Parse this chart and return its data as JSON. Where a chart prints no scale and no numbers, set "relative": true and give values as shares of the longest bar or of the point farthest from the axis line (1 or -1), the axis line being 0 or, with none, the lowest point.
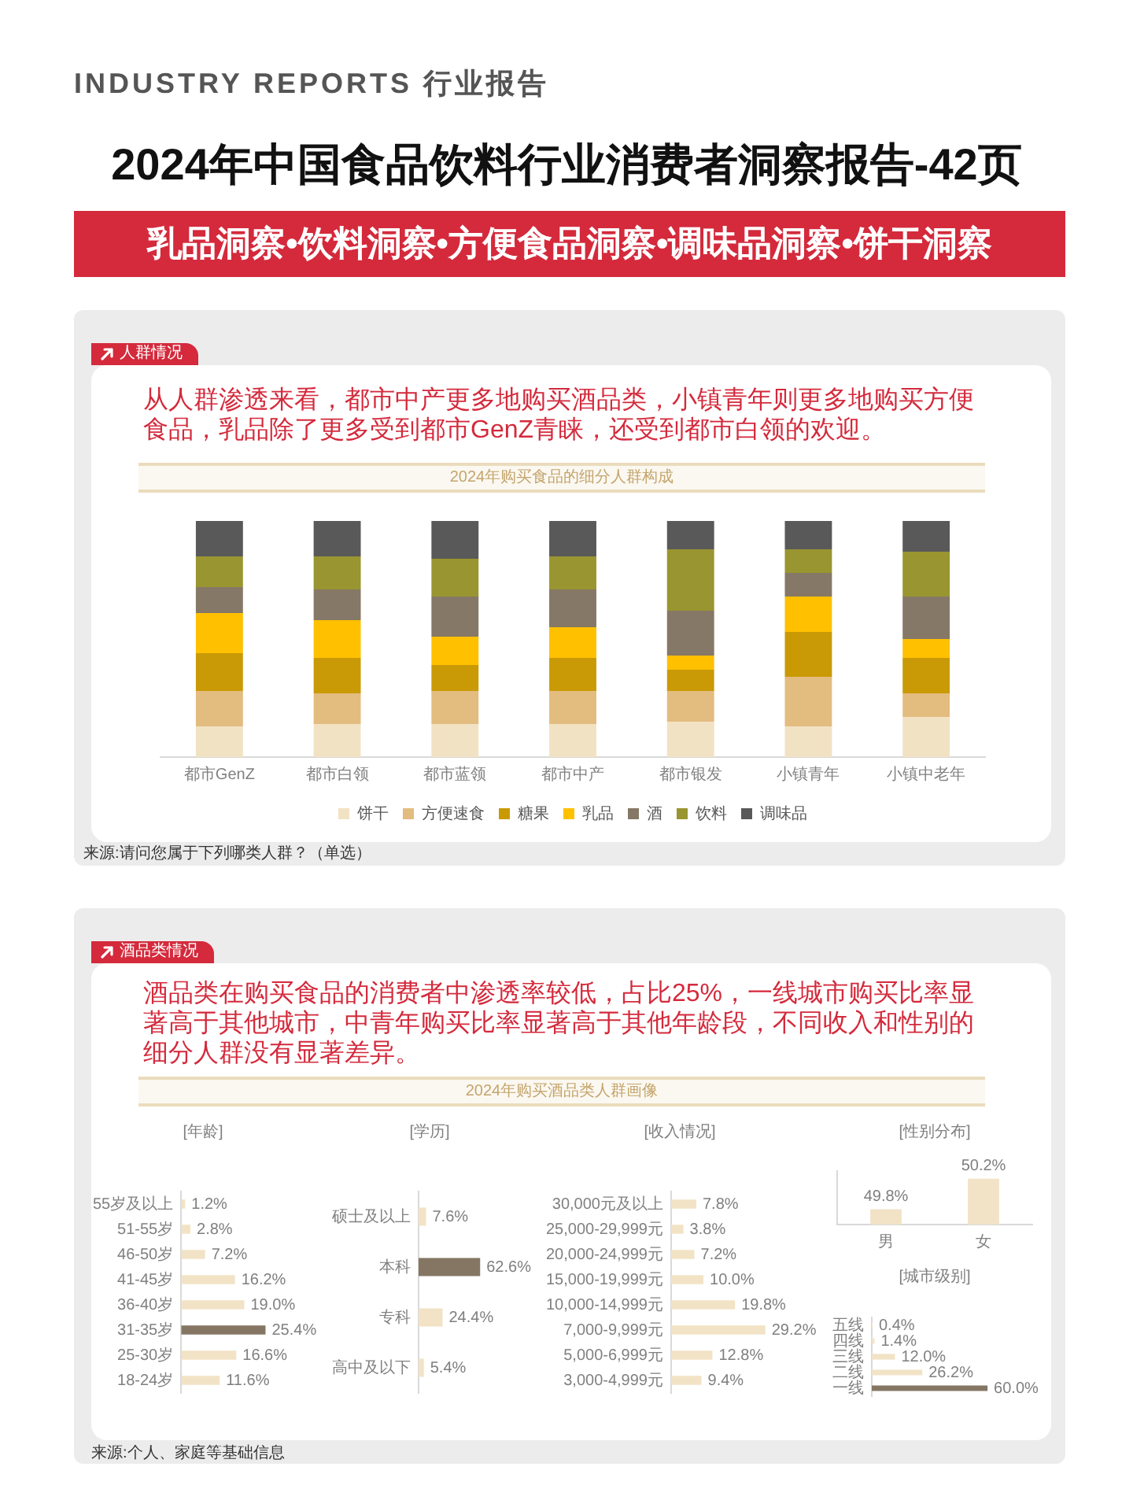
{
  "chart_data": [
    {
      "type": "other",
      "title": "2024年中国食品饮料行业消费者洞察报告-42页",
      "subtitle": "乳品洞察•饮料洞察•方便食品洞察•调味品洞察•饼干洞察",
      "annotations": [
        "INDUSTRY REPORTS 行业报告"
      ]
    },
    {
      "type": "bar",
      "stacked": true,
      "relative": true,
      "title": "2024年购买食品的细分人群构成",
      "subtitle": "从人群渗透来看，都市中产更多地购买酒品类，小镇青年则更多地购买方便食品，乳品除了更多受到都市GenZ青睐，还受到都市白领的欢迎。",
      "annotations": [
        "人群情况",
        "来源:请问您属于下列哪类人群？（单选）"
      ],
      "categories": [
        "都市GenZ",
        "都市白领",
        "都市蓝领",
        "都市中产",
        "都市银发",
        "小镇青年",
        "小镇中老年"
      ],
      "series": [
        {
          "name": "饼干",
          "color": "#f2e2c4",
          "values": [
            0.13,
            0.14,
            0.14,
            0.14,
            0.15,
            0.13,
            0.17
          ]
        },
        {
          "name": "方便速食",
          "color": "#e3bc80",
          "values": [
            0.15,
            0.13,
            0.14,
            0.14,
            0.13,
            0.21,
            0.1
          ]
        },
        {
          "name": "糖果",
          "color": "#c99a06",
          "values": [
            0.16,
            0.15,
            0.11,
            0.14,
            0.09,
            0.19,
            0.15
          ]
        },
        {
          "name": "乳品",
          "color": "#ffc000",
          "values": [
            0.17,
            0.16,
            0.12,
            0.13,
            0.06,
            0.15,
            0.08
          ]
        },
        {
          "name": "酒",
          "color": "#857866",
          "values": [
            0.11,
            0.13,
            0.17,
            0.16,
            0.19,
            0.1,
            0.18
          ]
        },
        {
          "name": "饮料",
          "color": "#999530",
          "values": [
            0.13,
            0.14,
            0.16,
            0.14,
            0.26,
            0.1,
            0.19
          ]
        },
        {
          "name": "调味品",
          "color": "#595959",
          "values": [
            0.15,
            0.15,
            0.16,
            0.15,
            0.12,
            0.12,
            0.13
          ]
        }
      ],
      "legend": "bottom"
    },
    {
      "type": "other",
      "title": "2024年购买酒品类人群画像",
      "subtitle": "酒品类在购买食品的消费者中渗透率较低，占比25%，一线城市购买比率显著高于其他城市，中青年购买比率显著高于其他年龄段，不同收入和性别的细分人群没有显著差异。",
      "annotations": [
        "酒品类情况"
      ]
    },
    {
      "type": "bar",
      "orientation": "horizontal",
      "title": "[年龄]",
      "categories": [
        "55岁及以上",
        "51-55岁",
        "46-50岁",
        "41-45岁",
        "36-40岁",
        "31-35岁",
        "25-30岁",
        "18-24岁"
      ],
      "values": [
        1.2,
        2.8,
        7.2,
        16.2,
        19.0,
        25.4,
        16.6,
        11.6
      ],
      "colors": [
        "#f2e3c6",
        "#f2e3c6",
        "#f2e3c6",
        "#f2e3c6",
        "#f2e3c6",
        "#857664",
        "#f2e3c6",
        "#f2e3c6"
      ],
      "value_labels": [
        "1.2%",
        "2.8%",
        "7.2%",
        "16.2%",
        "19.0%",
        "25.4%",
        "16.6%",
        "11.6%"
      ],
      "xlim": [
        0,
        26
      ],
      "tick_labels": "y",
      "annotations": [
        "来源:个人、家庭等基础信息"
      ]
    },
    {
      "type": "bar",
      "orientation": "horizontal",
      "title": "[学历]",
      "categories": [
        "硕士及以上",
        "本科",
        "专科",
        "高中及以下"
      ],
      "values": [
        7.6,
        62.6,
        24.4,
        5.4
      ],
      "colors": [
        "#f2e3c6",
        "#857664",
        "#f2e3c6",
        "#f2e3c6"
      ],
      "value_labels": [
        "7.6%",
        "62.6%",
        "24.4%",
        "5.4%"
      ],
      "xlim": [
        0,
        64
      ],
      "tick_labels": "y"
    },
    {
      "type": "bar",
      "orientation": "horizontal",
      "title": "[收入情况]",
      "categories": [
        "30,000元及以上",
        "25,000-29,999元",
        "20,000-24,999元",
        "15,000-19,999元",
        "10,000-14,999元",
        "7,000-9,999元",
        "5,000-6,999元",
        "3,000-4,999元"
      ],
      "values": [
        7.8,
        3.8,
        7.2,
        10.0,
        19.8,
        29.2,
        12.8,
        9.4
      ],
      "colors": [
        "#f2e3c6",
        "#f2e3c6",
        "#f2e3c6",
        "#f2e3c6",
        "#f2e3c6",
        "#f2e3c6",
        "#f2e3c6",
        "#f2e3c6"
      ],
      "value_labels": [
        "7.8%",
        "3.8%",
        "7.2%",
        "10.0%",
        "19.8%",
        "29.2%",
        "12.8%",
        "9.4%"
      ],
      "xlim": [
        0,
        30
      ],
      "tick_labels": "y"
    },
    {
      "type": "bar",
      "title": "[性别分布]",
      "categories": [
        "男",
        "女"
      ],
      "values": [
        49.8,
        50.2
      ],
      "colors": [
        "#f2e3c6",
        "#f2e3c6"
      ],
      "value_labels": [
        "49.8%",
        "50.2%"
      ],
      "ylim": [
        49.6,
        50.3
      ],
      "tick_labels": "x"
    },
    {
      "type": "bar",
      "orientation": "horizontal",
      "title": "[城市级别]",
      "categories": [
        "五线",
        "四线",
        "三线",
        "二线",
        "一线"
      ],
      "values": [
        0.4,
        1.4,
        12.0,
        26.2,
        60.0
      ],
      "colors": [
        "#f2e3c6",
        "#f2e3c6",
        "#f2e3c6",
        "#f2e3c6",
        "#857664"
      ],
      "value_labels": [
        "0.4%",
        "1.4%",
        "12.0%",
        "26.2%",
        "60.0%"
      ],
      "xlim": [
        0,
        62
      ],
      "tick_labels": "y"
    }
  ]
}
